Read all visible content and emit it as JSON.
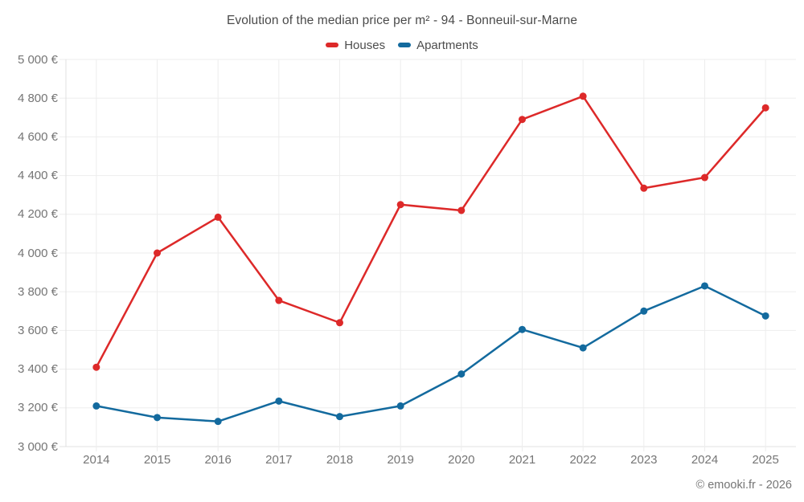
{
  "title": "Evolution of the median price per m² - 94 - Bonneuil-sur-Marne",
  "legend": [
    {
      "label": "Houses",
      "color": "#dd2929"
    },
    {
      "label": "Apartments",
      "color": "#136a9e"
    }
  ],
  "footer": "© emooki.fr - 2026",
  "chart_data": {
    "type": "line",
    "title": "Evolution of the median price per m² - 94 - Bonneuil-sur-Marne",
    "x": [
      2014,
      2015,
      2016,
      2017,
      2018,
      2019,
      2020,
      2021,
      2022,
      2023,
      2024,
      2025
    ],
    "series": [
      {
        "name": "Houses",
        "color": "#dd2929",
        "values": [
          3410,
          4000,
          4185,
          3755,
          3640,
          4250,
          4220,
          4690,
          4810,
          4335,
          4390,
          4750
        ]
      },
      {
        "name": "Apartments",
        "color": "#136a9e",
        "values": [
          3210,
          3150,
          3130,
          3235,
          3155,
          3210,
          3375,
          3605,
          3510,
          3700,
          3830,
          3675
        ]
      }
    ],
    "ylim": [
      3000,
      5000
    ],
    "ytick_step": 200,
    "ytick_labels": [
      "5 000 €",
      "4 800 €",
      "4 600 €",
      "4 400 €",
      "4 200 €",
      "4 000 €",
      "3 800 €",
      "3 600 €",
      "3 400 €",
      "3 200 €",
      "3 000 €"
    ],
    "xlabel": "",
    "ylabel": "",
    "grid": true,
    "legend_position": "top",
    "colors": {
      "grid": "#ededed",
      "axis": "#e0e0e0",
      "axis_text": "#757575",
      "title_text": "#4a4a4a"
    }
  }
}
